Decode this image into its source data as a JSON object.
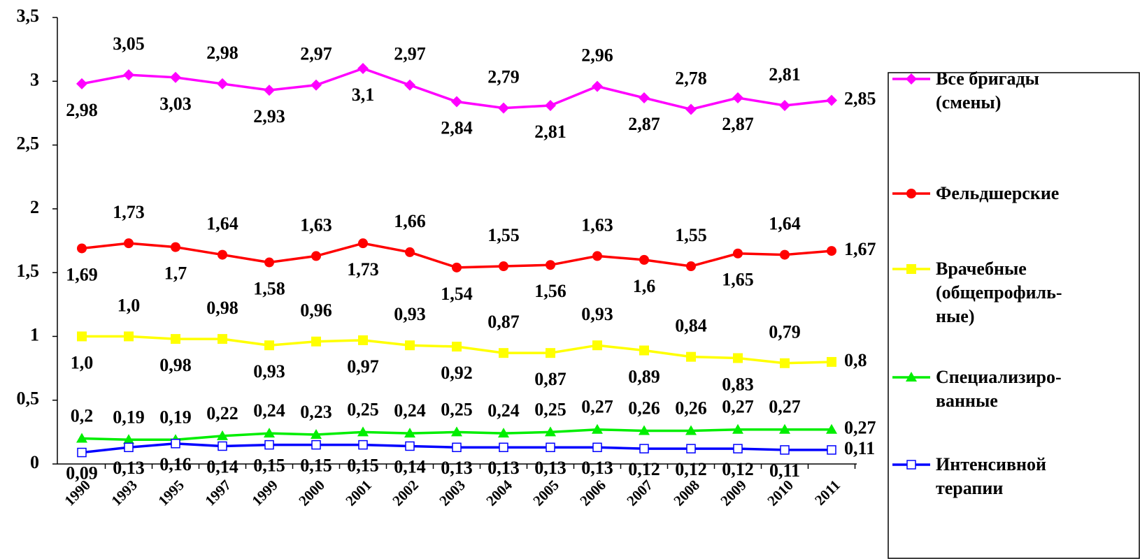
{
  "chart_data": {
    "type": "line",
    "categories": [
      "1990",
      "1993",
      "1995",
      "1997",
      "1999",
      "2000",
      "2001",
      "2002",
      "2003",
      "2004",
      "2005",
      "2006",
      "2007",
      "2008",
      "2009",
      "2010",
      "2011"
    ],
    "ylim": [
      0,
      3.5
    ],
    "yticks": [
      0,
      {
        "value": 0.5,
        "label": "0,5"
      },
      1,
      {
        "value": 1.5,
        "label": "1,5"
      },
      2,
      {
        "value": 2.5,
        "label": "2,5"
      },
      3,
      {
        "value": 3.5,
        "label": "3,5"
      }
    ],
    "series": [
      {
        "name": "Все бригады\n(смены)",
        "color": "#ff00ff",
        "marker": "diamond",
        "values": [
          2.98,
          3.05,
          3.03,
          2.98,
          2.93,
          2.97,
          3.1,
          2.97,
          2.84,
          2.79,
          2.81,
          2.96,
          2.87,
          2.78,
          2.87,
          2.81,
          2.85
        ],
        "value_labels": [
          "2,98",
          "3,05",
          "3,03",
          "2,98",
          "2,93",
          "2,97",
          "3,1",
          "2,97",
          "2,84",
          "2,79",
          "2,81",
          "2,96",
          "2,87",
          "2,78",
          "2,87",
          "2,81",
          "2,85"
        ]
      },
      {
        "name": "Фельдшерские",
        "color": "#ff0000",
        "marker": "circle",
        "values": [
          1.69,
          1.73,
          1.7,
          1.64,
          1.58,
          1.63,
          1.73,
          1.66,
          1.54,
          1.55,
          1.56,
          1.63,
          1.6,
          1.55,
          1.65,
          1.64,
          1.67
        ],
        "value_labels": [
          "1,69",
          "1,73",
          "1,7",
          "1,64",
          "1,58",
          "1,63",
          "1,73",
          "1,66",
          "1,54",
          "1,55",
          "1,56",
          "1,63",
          "1,6",
          "1,55",
          "1,65",
          "1,64",
          "1,67"
        ]
      },
      {
        "name": "Врачебные\n(общепрофиль-\nные)",
        "color": "#ffff00",
        "marker": "square",
        "values": [
          1.0,
          1.0,
          0.98,
          0.98,
          0.93,
          0.96,
          0.97,
          0.93,
          0.92,
          0.87,
          0.87,
          0.93,
          0.89,
          0.84,
          0.83,
          0.79,
          0.8
        ],
        "value_labels": [
          "1,0",
          "1,0",
          "0,98",
          "0,98",
          "0,93",
          "0,96",
          "0,97",
          "0,93",
          "0,92",
          "0,87",
          "0,87",
          "0,93",
          "0,89",
          "0,84",
          "0,83",
          "0,79",
          "0,8"
        ]
      },
      {
        "name": "Специализиро-\nванные",
        "color": "#00ee00",
        "marker": "triangle",
        "values": [
          0.2,
          0.19,
          0.19,
          0.22,
          0.24,
          0.23,
          0.25,
          0.24,
          0.25,
          0.24,
          0.25,
          0.27,
          0.26,
          0.26,
          0.27,
          0.27,
          0.27
        ],
        "value_labels": [
          "0,2",
          "0,19",
          "0,19",
          "0,22",
          "0,24",
          "0,23",
          "0,25",
          "0,24",
          "0,25",
          "0,24",
          "0,25",
          "0,27",
          "0,26",
          "0,26",
          "0,27",
          "0,27",
          "0,27"
        ]
      },
      {
        "name": "Интенсивной\nтерапии",
        "color": "#0000ff",
        "marker": "open-square",
        "values": [
          0.09,
          0.13,
          0.16,
          0.14,
          0.15,
          0.15,
          0.15,
          0.14,
          0.13,
          0.13,
          0.13,
          0.13,
          0.12,
          0.12,
          0.12,
          0.11,
          0.11
        ],
        "value_labels": [
          "0,09",
          "0,13",
          "0,16",
          "0,14",
          "0,15",
          "0,15",
          "0,15",
          "0,14",
          "0,13",
          "0,13",
          "0,13",
          "0,13",
          "0,12",
          "0,12",
          "0,12",
          "0,11",
          "0,11"
        ]
      }
    ]
  }
}
